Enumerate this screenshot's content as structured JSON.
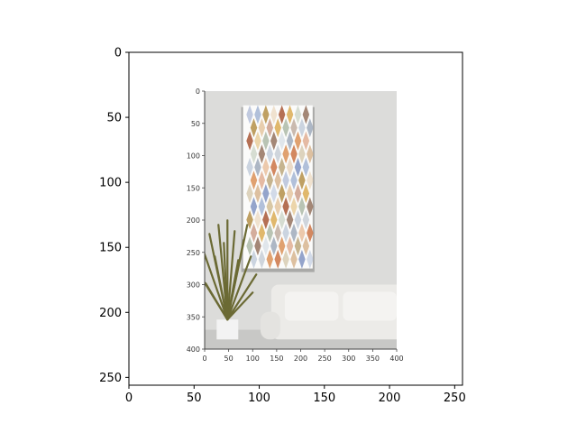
{
  "chart_data": {
    "type": "image",
    "title": "",
    "xlabel": "",
    "ylabel": "",
    "xlim": [
      0,
      256
    ],
    "ylim": [
      256,
      0
    ],
    "x_ticks": [
      0,
      50,
      100,
      150,
      200,
      250
    ],
    "y_ticks": [
      0,
      50,
      100,
      150,
      200,
      250
    ],
    "image": {
      "extent_x": [
        56,
        206
      ],
      "extent_y": [
        31,
        230
      ],
      "inner_axes": {
        "x_ticks": [
          0,
          50,
          100,
          150,
          200,
          250,
          300,
          350,
          400
        ],
        "y_ticks": [
          0,
          50,
          100,
          150,
          200,
          250,
          300,
          350,
          400
        ],
        "range": [
          0,
          400
        ]
      },
      "scene": {
        "wall_color": "#dcdcda",
        "floor_color": "#c8c8c6",
        "sofa_color": "#ecebe8",
        "pot_color": "#f3f3f3",
        "plant_color": "#6b6a34",
        "canvas_frame_color": "#fbfbfa",
        "canvas_shadow_color": "#a9a9a7",
        "canvas_extent_inner": {
          "x": [
            80,
            225
          ],
          "y": [
            22,
            275
          ]
        },
        "plant_extent_inner": {
          "x": [
            5,
            120
          ],
          "y": [
            255,
            385
          ]
        },
        "sofa_extent_inner": {
          "x": [
            120,
            400
          ],
          "y": [
            300,
            385
          ]
        },
        "diamond_colors": [
          "#7a8fbf",
          "#d9a74a",
          "#d98b4d",
          "#9fb2d2",
          "#a9b7a2",
          "#c96b3a",
          "#b08a3d",
          "#8f6a55",
          "#b9a274",
          "#e3c39b",
          "#bfcbd9",
          "#d6b28a",
          "#a44d2b",
          "#9aa6b8"
        ]
      }
    }
  }
}
